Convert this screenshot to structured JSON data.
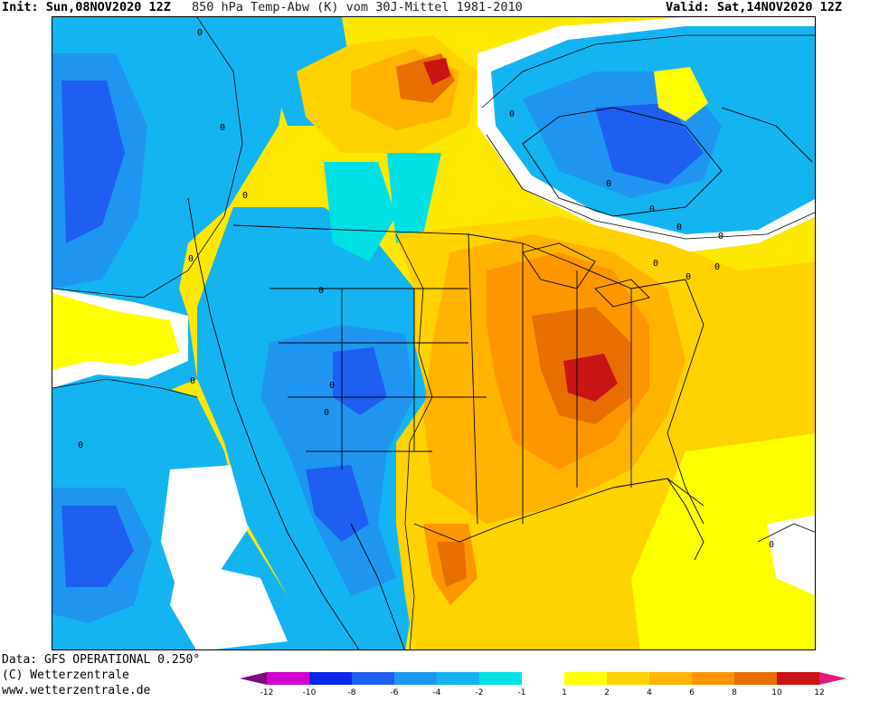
{
  "header": {
    "init": "Init: Sun,08NOV2020 12Z",
    "title": "850 hPa Temp-Abw (K) vom 30J-Mittel 1981-2010",
    "valid": "Valid: Sat,14NOV2020 12Z"
  },
  "footer": {
    "data": "Data: GFS OPERATIONAL 0.250°",
    "copyright": "(C) Wetterzentrale",
    "url": "www.wetterzentrale.de"
  },
  "colorbar": {
    "colors": [
      "#7a0a7a",
      "#d000d0",
      "#0a28e8",
      "#1e5ef0",
      "#1e96f0",
      "#14b4f0",
      "#00e1e6",
      "#ffffff",
      "#ffff00",
      "#ffd200",
      "#ffb400",
      "#ff9600",
      "#e86e00",
      "#c81414",
      "#e6197d"
    ],
    "tick_labels": [
      "-12",
      "-10",
      "-8",
      "-6",
      "-4",
      "-2",
      "-1",
      "1",
      "2",
      "4",
      "6",
      "8",
      "10",
      "12"
    ]
  },
  "map": {
    "contour_labels": [
      "0",
      "0",
      "0",
      "0",
      "0",
      "0",
      "0",
      "0",
      "0",
      "0",
      "0",
      "0",
      "0",
      "0",
      "0",
      "0",
      "0",
      "0"
    ],
    "palette": {
      "deep_blue": "#1e5ef0",
      "mid_blue": "#1e96f0",
      "light_blue": "#14b4f0",
      "cyan": "#00e1e6",
      "white": "#ffffff",
      "yellow": "#ffff00",
      "gold": "#ffd200",
      "orange_light": "#ffb400",
      "orange": "#ff9600",
      "orange_dark": "#e86e00",
      "red": "#c81414"
    }
  }
}
